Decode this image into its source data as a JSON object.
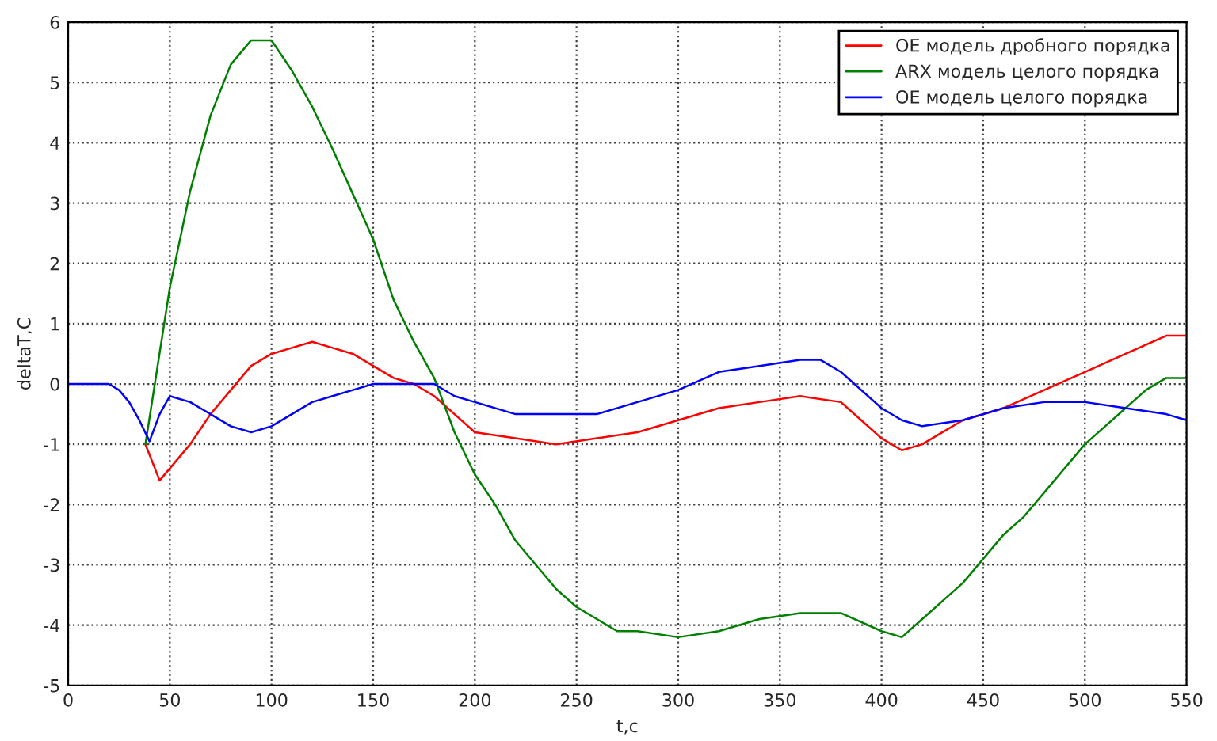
{
  "chart_data": {
    "type": "line",
    "xlabel": "t,c",
    "ylabel": "deltaT,C",
    "xlim": [
      0,
      550
    ],
    "xticks": [
      0,
      50,
      100,
      150,
      200,
      250,
      300,
      350,
      400,
      450,
      500,
      550
    ],
    "ylim": [
      -5,
      6
    ],
    "yticks": [
      -5,
      -4,
      -3,
      -2,
      -1,
      0,
      1,
      2,
      3,
      4,
      5,
      6
    ],
    "grid": true,
    "legend": "top right",
    "line_style": "solid",
    "marker": "none",
    "series": [
      {
        "name": "OE модель дробного порядка",
        "color": "#ff0000",
        "x": [
          38,
          45,
          50,
          60,
          70,
          80,
          90,
          100,
          110,
          120,
          130,
          140,
          150,
          160,
          170,
          180,
          190,
          200,
          220,
          240,
          260,
          280,
          300,
          320,
          340,
          360,
          380,
          390,
          400,
          410,
          420,
          430,
          440,
          460,
          480,
          500,
          520,
          540,
          550
        ],
        "values": [
          -1.0,
          -1.6,
          -1.4,
          -1.0,
          -0.5,
          -0.1,
          0.3,
          0.5,
          0.6,
          0.7,
          0.6,
          0.5,
          0.3,
          0.1,
          0.0,
          -0.2,
          -0.5,
          -0.8,
          -0.9,
          -1.0,
          -0.9,
          -0.8,
          -0.6,
          -0.4,
          -0.3,
          -0.2,
          -0.3,
          -0.6,
          -0.9,
          -1.1,
          -1.0,
          -0.8,
          -0.6,
          -0.4,
          -0.1,
          0.2,
          0.5,
          0.8,
          0.8
        ]
      },
      {
        "name": "ARX модель целого порядка",
        "color": "#008000",
        "x": [
          38,
          50,
          60,
          70,
          80,
          90,
          100,
          110,
          120,
          130,
          140,
          150,
          160,
          170,
          180,
          190,
          200,
          210,
          220,
          230,
          240,
          250,
          260,
          270,
          280,
          300,
          320,
          340,
          360,
          380,
          400,
          410,
          420,
          430,
          440,
          450,
          460,
          470,
          480,
          490,
          500,
          510,
          520,
          530,
          540,
          550
        ],
        "values": [
          -1.0,
          1.6,
          3.2,
          4.45,
          5.3,
          5.7,
          5.7,
          5.2,
          4.6,
          3.9,
          3.15,
          2.4,
          1.4,
          0.7,
          0.1,
          -0.8,
          -1.5,
          -2.0,
          -2.6,
          -3.0,
          -3.4,
          -3.7,
          -3.9,
          -4.1,
          -4.1,
          -4.2,
          -4.1,
          -3.9,
          -3.8,
          -3.8,
          -4.1,
          -4.2,
          -3.9,
          -3.6,
          -3.3,
          -2.9,
          -2.5,
          -2.2,
          -1.8,
          -1.4,
          -1.0,
          -0.7,
          -0.4,
          -0.1,
          0.1,
          0.1
        ]
      },
      {
        "name": "OE модель целого порядка",
        "color": "#0000ff",
        "x": [
          0,
          10,
          20,
          25,
          30,
          35,
          40,
          45,
          50,
          60,
          70,
          80,
          90,
          100,
          110,
          120,
          130,
          140,
          150,
          160,
          170,
          180,
          190,
          200,
          220,
          240,
          260,
          280,
          300,
          320,
          340,
          360,
          370,
          380,
          390,
          400,
          410,
          420,
          440,
          460,
          480,
          500,
          520,
          540,
          550
        ],
        "values": [
          0,
          0,
          0,
          -0.1,
          -0.3,
          -0.6,
          -0.95,
          -0.5,
          -0.2,
          -0.3,
          -0.5,
          -0.7,
          -0.8,
          -0.7,
          -0.5,
          -0.3,
          -0.2,
          -0.1,
          0.0,
          0.0,
          0.0,
          0.0,
          -0.2,
          -0.3,
          -0.5,
          -0.5,
          -0.5,
          -0.3,
          -0.1,
          0.2,
          0.3,
          0.4,
          0.4,
          0.2,
          -0.1,
          -0.4,
          -0.6,
          -0.7,
          -0.6,
          -0.4,
          -0.3,
          -0.3,
          -0.4,
          -0.5,
          -0.6
        ]
      }
    ]
  }
}
